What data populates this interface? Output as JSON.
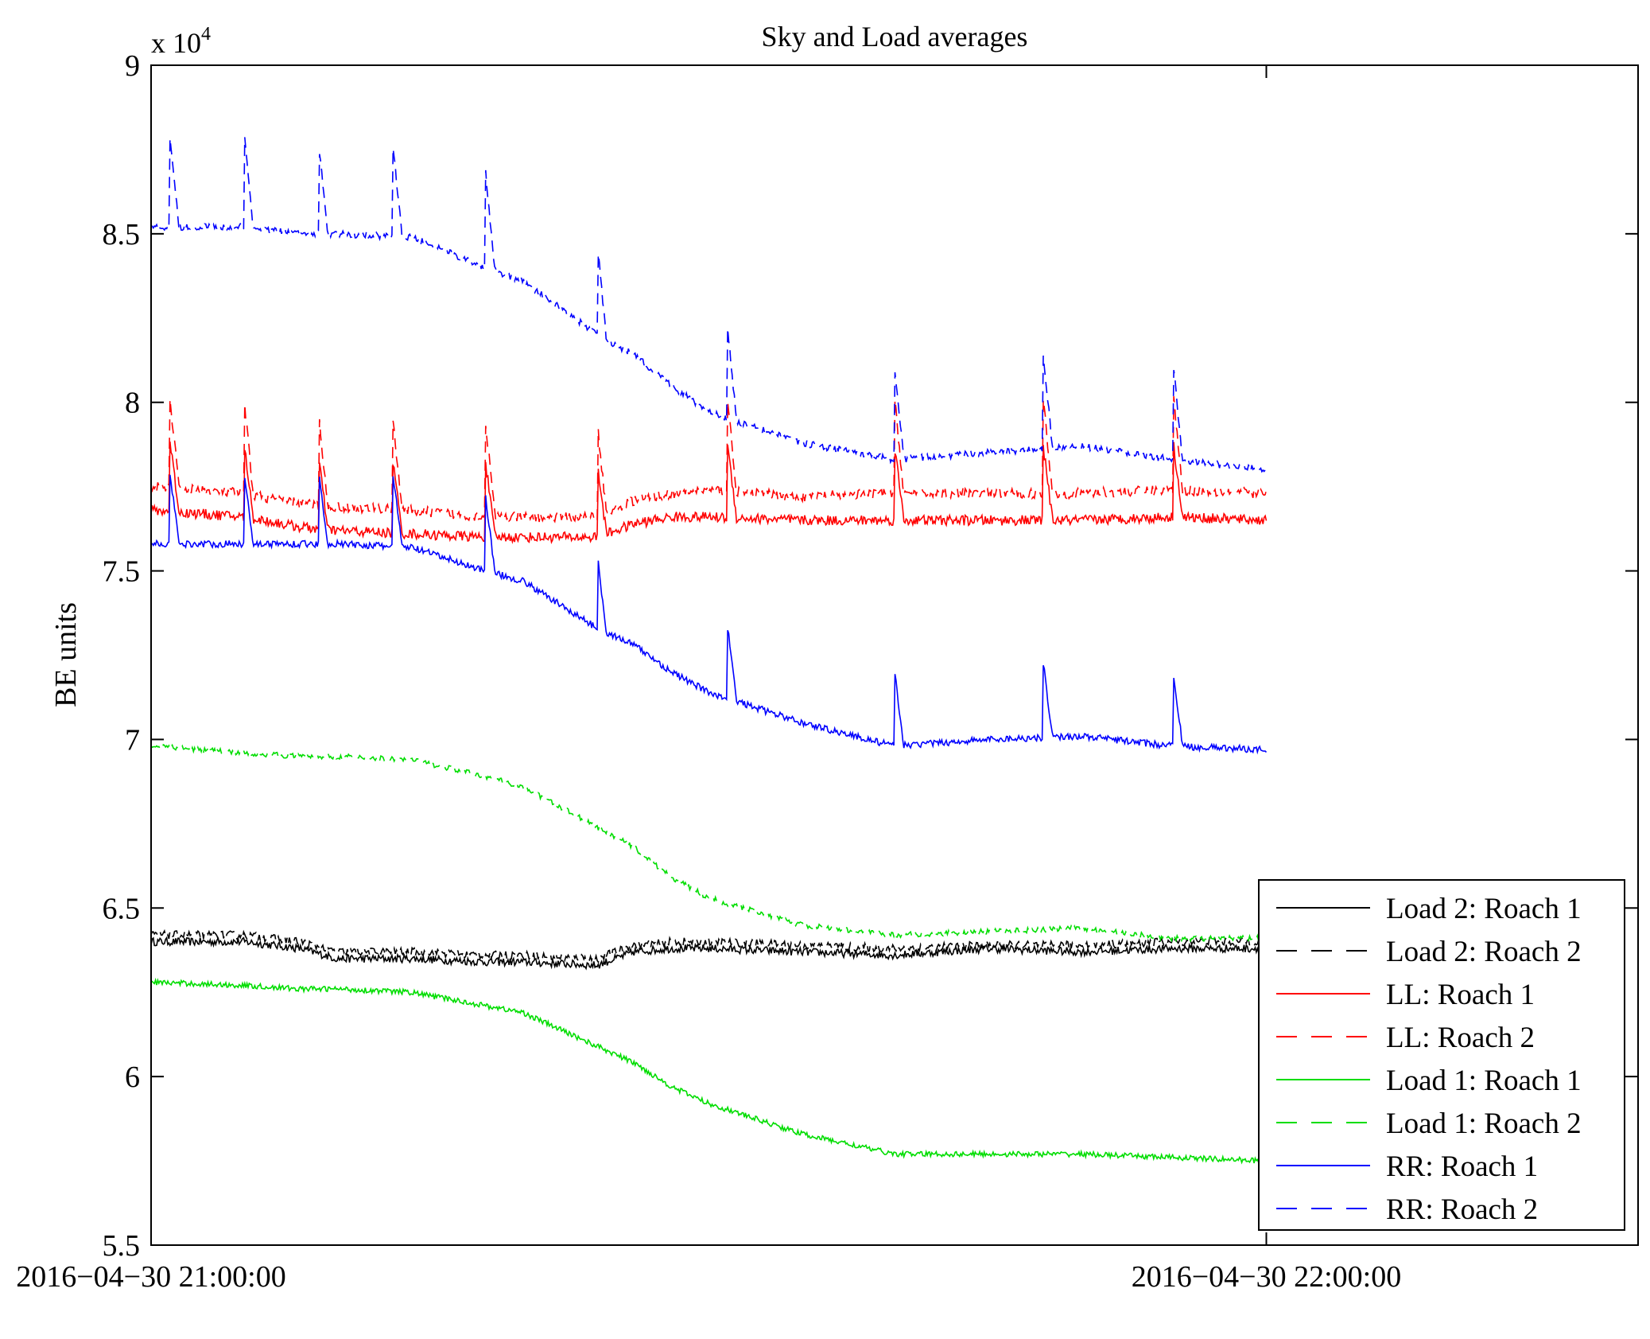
{
  "chart_data": {
    "type": "line",
    "title": "Sky and Load averages",
    "xlabel": "",
    "ylabel": "BE units",
    "y_multiplier_base": "x 10",
    "y_multiplier_exp": "4",
    "ylim": [
      5.5,
      9
    ],
    "yticks": [
      5.5,
      6,
      6.5,
      7,
      7.5,
      8,
      8.5,
      9
    ],
    "ytick_labels": [
      "5.5",
      "6",
      "6.5",
      "7",
      "7.5",
      "8",
      "8.5",
      "9"
    ],
    "xlim": [
      0,
      80
    ],
    "xticks": [
      0,
      60
    ],
    "xtick_labels": [
      "2016−04−30 21:00:00",
      "2016−04−30 22:00:00"
    ],
    "x_units": "minutes after 2016-04-30 21:00:00",
    "grid": false,
    "legend_position": "bottom-right",
    "spikes": [
      1,
      5,
      9,
      13,
      18,
      24,
      31,
      40,
      48,
      55
    ],
    "series": [
      {
        "name": "Load 2: Roach 1",
        "color": "#000000",
        "style": "solid",
        "noise": 0.012,
        "x": [
          0,
          5,
          8,
          10,
          14,
          18,
          20,
          24,
          26,
          28,
          30,
          35,
          40,
          45,
          50,
          55,
          60
        ],
        "y": [
          6.4,
          6.4,
          6.38,
          6.35,
          6.35,
          6.34,
          6.34,
          6.33,
          6.37,
          6.38,
          6.38,
          6.37,
          6.36,
          6.38,
          6.37,
          6.38,
          6.38
        ]
      },
      {
        "name": "Load 2: Roach 2",
        "color": "#000000",
        "style": "dashed",
        "noise": 0.012,
        "x": [
          0,
          5,
          8,
          10,
          14,
          18,
          20,
          24,
          26,
          28,
          30,
          35,
          40,
          45,
          50,
          55,
          60
        ],
        "y": [
          6.42,
          6.42,
          6.4,
          6.37,
          6.37,
          6.36,
          6.36,
          6.35,
          6.39,
          6.4,
          6.4,
          6.39,
          6.38,
          6.39,
          6.39,
          6.4,
          6.4
        ]
      },
      {
        "name": "LL: Roach 1",
        "color": "#ff0000",
        "style": "solid",
        "noise": 0.015,
        "x": [
          0,
          5,
          8,
          10,
          14,
          18,
          20,
          24,
          26,
          28,
          30,
          35,
          40,
          45,
          50,
          55,
          60
        ],
        "y": [
          7.68,
          7.66,
          7.63,
          7.62,
          7.61,
          7.6,
          7.6,
          7.6,
          7.64,
          7.66,
          7.66,
          7.65,
          7.65,
          7.65,
          7.65,
          7.66,
          7.65
        ]
      },
      {
        "name": "LL: Roach 2",
        "color": "#ff0000",
        "style": "dashed",
        "noise": 0.015,
        "x": [
          0,
          5,
          8,
          10,
          14,
          18,
          20,
          24,
          26,
          28,
          30,
          35,
          40,
          45,
          50,
          55,
          60
        ],
        "y": [
          7.75,
          7.73,
          7.7,
          7.69,
          7.68,
          7.66,
          7.66,
          7.66,
          7.71,
          7.73,
          7.74,
          7.72,
          7.73,
          7.73,
          7.73,
          7.74,
          7.73
        ]
      },
      {
        "name": "Load 1: Roach 1",
        "color": "#00dd00",
        "style": "solid",
        "noise": 0.008,
        "x": [
          0,
          5,
          8,
          10,
          14,
          18,
          20,
          24,
          26,
          28,
          30,
          35,
          40,
          45,
          50,
          55,
          60
        ],
        "y": [
          6.28,
          6.27,
          6.26,
          6.26,
          6.25,
          6.21,
          6.19,
          6.09,
          6.04,
          5.97,
          5.92,
          5.83,
          5.77,
          5.77,
          5.77,
          5.76,
          5.75
        ]
      },
      {
        "name": "Load 1: Roach 2",
        "color": "#00dd00",
        "style": "dashed",
        "noise": 0.008,
        "x": [
          0,
          5,
          8,
          10,
          14,
          18,
          20,
          24,
          26,
          28,
          30,
          35,
          40,
          45,
          50,
          55,
          60
        ],
        "y": [
          6.98,
          6.96,
          6.95,
          6.95,
          6.94,
          6.89,
          6.86,
          6.74,
          6.68,
          6.59,
          6.53,
          6.45,
          6.42,
          6.43,
          6.44,
          6.41,
          6.41
        ]
      },
      {
        "name": "RR: Roach 1",
        "color": "#0000ff",
        "style": "solid",
        "noise": 0.01,
        "x": [
          0,
          5,
          8,
          10,
          14,
          18,
          20,
          24,
          26,
          28,
          30,
          35,
          40,
          45,
          50,
          55,
          60
        ],
        "y": [
          7.58,
          7.58,
          7.58,
          7.58,
          7.57,
          7.5,
          7.47,
          7.33,
          7.28,
          7.2,
          7.14,
          7.05,
          6.98,
          7.0,
          7.01,
          6.98,
          6.97
        ]
      },
      {
        "name": "RR: Roach 2",
        "color": "#0000ff",
        "style": "dashed",
        "noise": 0.01,
        "x": [
          0,
          5,
          8,
          10,
          14,
          18,
          20,
          24,
          26,
          28,
          30,
          35,
          40,
          45,
          50,
          55,
          60
        ],
        "y": [
          8.52,
          8.52,
          8.5,
          8.5,
          8.49,
          8.4,
          8.36,
          8.2,
          8.14,
          8.05,
          7.97,
          7.88,
          7.83,
          7.85,
          7.87,
          7.83,
          7.8
        ]
      }
    ]
  }
}
